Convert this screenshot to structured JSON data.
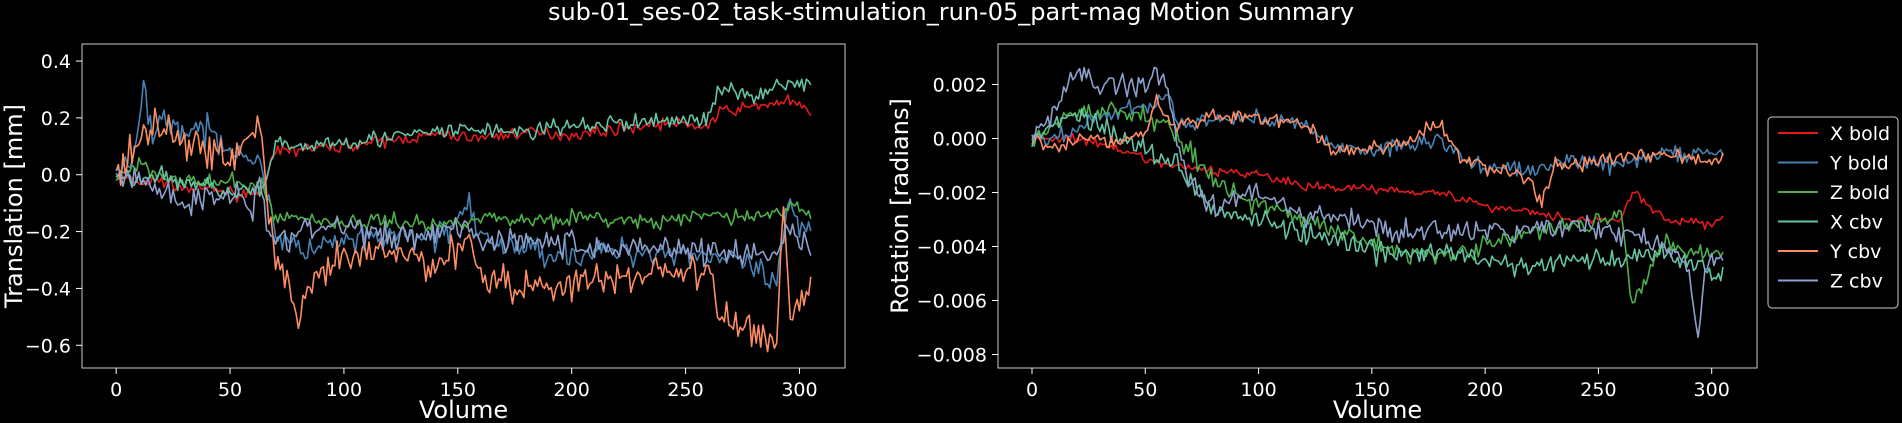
{
  "figure": {
    "title": "sub-01_ses-02_task-stimulation_run-05_part-mag Motion Summary",
    "background": "#000000",
    "legend_position": "right-outside"
  },
  "chart_data": [
    {
      "type": "line",
      "xlabel": "Volume",
      "ylabel": "Translation [mm]",
      "xlim": [
        -15,
        320
      ],
      "ylim": [
        -0.68,
        0.46
      ],
      "xticks": [
        0,
        50,
        100,
        150,
        200,
        250,
        300
      ],
      "yticks": [
        -0.6,
        -0.4,
        -0.2,
        0.0,
        0.2,
        0.4
      ],
      "ytick_labels": [
        "−0.6",
        "−0.4",
        "−0.2",
        "0.0",
        "0.2",
        "0.4"
      ],
      "grid": false,
      "series": [
        {
          "name": "X bold",
          "color": "#e41a1c",
          "noise": 0.014,
          "x": [
            0,
            10,
            20,
            30,
            40,
            55,
            65,
            70,
            80,
            100,
            120,
            140,
            160,
            180,
            200,
            220,
            240,
            260,
            265,
            280,
            295,
            305
          ],
          "y": [
            0.0,
            -0.03,
            -0.02,
            -0.05,
            -0.05,
            -0.07,
            -0.04,
            0.08,
            0.09,
            0.1,
            0.12,
            0.14,
            0.13,
            0.15,
            0.14,
            0.16,
            0.18,
            0.17,
            0.22,
            0.24,
            0.26,
            0.22
          ]
        },
        {
          "name": "Y bold",
          "color": "#4682b4",
          "noise": 0.035,
          "x": [
            0,
            8,
            12,
            16,
            20,
            30,
            40,
            50,
            58,
            65,
            70,
            80,
            100,
            120,
            140,
            155,
            160,
            180,
            200,
            220,
            240,
            260,
            280,
            290,
            295,
            300,
            305
          ],
          "y": [
            0.0,
            0.05,
            0.3,
            0.15,
            0.2,
            0.15,
            0.15,
            0.1,
            0.07,
            0.0,
            -0.2,
            -0.27,
            -0.24,
            -0.22,
            -0.22,
            -0.12,
            -0.23,
            -0.26,
            -0.28,
            -0.27,
            -0.27,
            -0.28,
            -0.33,
            -0.4,
            -0.1,
            -0.2,
            -0.17
          ]
        },
        {
          "name": "Z bold",
          "color": "#4daf4a",
          "noise": 0.02,
          "x": [
            0,
            10,
            20,
            30,
            40,
            55,
            65,
            70,
            80,
            100,
            120,
            140,
            160,
            180,
            200,
            220,
            240,
            260,
            280,
            295,
            305
          ],
          "y": [
            0.0,
            0.04,
            0.0,
            -0.02,
            -0.03,
            -0.03,
            -0.05,
            -0.15,
            -0.15,
            -0.17,
            -0.16,
            -0.18,
            -0.15,
            -0.16,
            -0.15,
            -0.16,
            -0.17,
            -0.14,
            -0.15,
            -0.12,
            -0.13
          ]
        },
        {
          "name": "X cbv",
          "color": "#66c2a5",
          "noise": 0.022,
          "x": [
            0,
            10,
            20,
            30,
            40,
            55,
            65,
            70,
            80,
            100,
            120,
            140,
            160,
            180,
            200,
            220,
            240,
            260,
            265,
            280,
            295,
            305
          ],
          "y": [
            0.0,
            -0.02,
            0.0,
            -0.03,
            -0.04,
            -0.06,
            -0.05,
            0.1,
            0.1,
            0.12,
            0.13,
            0.15,
            0.16,
            0.15,
            0.17,
            0.18,
            0.19,
            0.2,
            0.3,
            0.28,
            0.33,
            0.31
          ]
        },
        {
          "name": "Y cbv",
          "color": "#fc8d62",
          "noise": 0.045,
          "x": [
            0,
            10,
            15,
            20,
            30,
            40,
            50,
            60,
            63,
            66,
            70,
            75,
            80,
            90,
            100,
            120,
            140,
            155,
            160,
            180,
            200,
            220,
            240,
            260,
            265,
            280,
            290,
            293,
            296,
            300,
            305
          ],
          "y": [
            0.0,
            0.1,
            0.17,
            0.2,
            0.1,
            0.1,
            0.05,
            0.15,
            0.2,
            -0.1,
            -0.28,
            -0.4,
            -0.5,
            -0.35,
            -0.3,
            -0.27,
            -0.32,
            -0.22,
            -0.35,
            -0.4,
            -0.38,
            -0.37,
            -0.33,
            -0.35,
            -0.5,
            -0.55,
            -0.58,
            -0.1,
            -0.5,
            -0.45,
            -0.38
          ]
        },
        {
          "name": "Z cbv",
          "color": "#8da0cb",
          "noise": 0.035,
          "x": [
            0,
            10,
            20,
            30,
            40,
            55,
            60,
            63,
            66,
            70,
            80,
            100,
            120,
            140,
            155,
            160,
            180,
            200,
            220,
            240,
            260,
            280,
            290,
            295,
            300,
            305
          ],
          "y": [
            0.0,
            -0.02,
            -0.05,
            -0.1,
            -0.08,
            -0.05,
            -0.15,
            0.05,
            -0.2,
            -0.25,
            -0.2,
            -0.18,
            -0.22,
            -0.2,
            -0.17,
            -0.24,
            -0.22,
            -0.25,
            -0.26,
            -0.25,
            -0.27,
            -0.28,
            -0.3,
            -0.15,
            -0.25,
            -0.26
          ]
        }
      ]
    },
    {
      "type": "line",
      "xlabel": "Volume",
      "ylabel": "Rotation [radians]",
      "xlim": [
        -15,
        320
      ],
      "ylim": [
        -0.0085,
        0.0035
      ],
      "xticks": [
        0,
        50,
        100,
        150,
        200,
        250,
        300
      ],
      "yticks": [
        -0.008,
        -0.006,
        -0.004,
        -0.002,
        0.0,
        0.002
      ],
      "ytick_labels": [
        "−0.008",
        "−0.006",
        "−0.004",
        "−0.002",
        "0.000",
        "0.002"
      ],
      "grid": false,
      "series": [
        {
          "name": "X bold",
          "color": "#e41a1c",
          "noise": 0.00012,
          "x": [
            0,
            20,
            40,
            60,
            80,
            100,
            120,
            140,
            160,
            180,
            200,
            220,
            240,
            260,
            265,
            280,
            300,
            305
          ],
          "y": [
            0.0,
            0.0,
            -0.0005,
            -0.001,
            -0.0012,
            -0.0013,
            -0.0018,
            -0.0018,
            -0.0019,
            -0.002,
            -0.0025,
            -0.0027,
            -0.003,
            -0.003,
            -0.002,
            -0.003,
            -0.0032,
            -0.0028
          ]
        },
        {
          "name": "Y bold",
          "color": "#4682b4",
          "noise": 0.00022,
          "x": [
            0,
            10,
            20,
            30,
            40,
            50,
            60,
            65,
            70,
            80,
            100,
            120,
            130,
            140,
            150,
            160,
            180,
            190,
            200,
            220,
            240,
            260,
            280,
            290,
            300,
            305
          ],
          "y": [
            0.0,
            0.0,
            0.0003,
            0.0008,
            0.001,
            0.0012,
            0.0015,
            0.0005,
            0.0005,
            0.0007,
            0.0008,
            0.0005,
            -0.0002,
            -0.0003,
            -0.0005,
            -0.0003,
            0.0,
            -0.0008,
            -0.001,
            -0.0012,
            -0.0008,
            -0.001,
            -0.0005,
            -0.0006,
            -0.0006,
            -0.0008
          ]
        },
        {
          "name": "Z bold",
          "color": "#4daf4a",
          "noise": 0.00025,
          "x": [
            0,
            10,
            20,
            30,
            40,
            50,
            60,
            70,
            80,
            100,
            120,
            140,
            160,
            180,
            200,
            220,
            240,
            260,
            265,
            280,
            295,
            305
          ],
          "y": [
            0.0,
            0.0005,
            0.001,
            0.001,
            0.001,
            0.0008,
            0.0005,
            -0.0005,
            -0.0015,
            -0.0025,
            -0.003,
            -0.0035,
            -0.0042,
            -0.0043,
            -0.004,
            -0.0035,
            -0.0032,
            -0.0028,
            -0.006,
            -0.0038,
            -0.0042,
            -0.0042
          ]
        },
        {
          "name": "X cbv",
          "color": "#66c2a5",
          "noise": 0.0003,
          "x": [
            0,
            10,
            20,
            30,
            40,
            50,
            60,
            70,
            80,
            100,
            120,
            140,
            160,
            180,
            200,
            220,
            240,
            260,
            280,
            290,
            300,
            305
          ],
          "y": [
            0.0,
            0.0005,
            0.001,
            0.0005,
            0.0,
            -0.0003,
            -0.0008,
            -0.0015,
            -0.0025,
            -0.003,
            -0.0035,
            -0.004,
            -0.0043,
            -0.0042,
            -0.0045,
            -0.0048,
            -0.0045,
            -0.0045,
            -0.0042,
            -0.0045,
            -0.005,
            -0.005
          ]
        },
        {
          "name": "Y cbv",
          "color": "#fc8d62",
          "noise": 0.0002,
          "x": [
            0,
            10,
            20,
            30,
            40,
            50,
            55,
            60,
            65,
            70,
            80,
            100,
            120,
            130,
            140,
            150,
            160,
            180,
            190,
            200,
            220,
            225,
            230,
            240,
            260,
            280,
            300,
            305
          ],
          "y": [
            0.0,
            -0.0003,
            0.0,
            0.0,
            -0.0002,
            0.0003,
            0.0015,
            0.0008,
            0.0005,
            0.0006,
            0.0008,
            0.0008,
            0.0005,
            -0.0003,
            -0.0005,
            -0.0003,
            -0.0003,
            0.0005,
            -0.0008,
            -0.001,
            -0.0015,
            -0.0025,
            -0.001,
            -0.001,
            -0.0007,
            -0.0005,
            -0.0009,
            -0.0008
          ]
        },
        {
          "name": "Z cbv",
          "color": "#8da0cb",
          "noise": 0.0003,
          "x": [
            0,
            10,
            20,
            30,
            40,
            50,
            55,
            60,
            65,
            70,
            80,
            100,
            120,
            140,
            160,
            180,
            200,
            220,
            240,
            260,
            280,
            290,
            294,
            297,
            300,
            305
          ],
          "y": [
            0.0,
            0.001,
            0.0025,
            0.002,
            0.002,
            0.002,
            0.0025,
            0.0018,
            -0.0005,
            -0.0015,
            -0.0025,
            -0.002,
            -0.0028,
            -0.003,
            -0.0035,
            -0.0034,
            -0.0035,
            -0.0034,
            -0.0032,
            -0.0035,
            -0.004,
            -0.0048,
            -0.0078,
            -0.005,
            -0.0045,
            -0.0045
          ]
        }
      ]
    }
  ]
}
